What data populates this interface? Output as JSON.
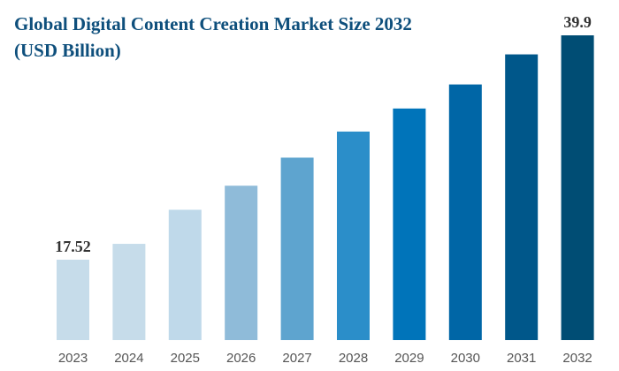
{
  "chart_data": {
    "type": "bar",
    "title": "Global Digital Content Creation Market Size 2032 (USD Billion)",
    "xlabel": "",
    "ylabel": "",
    "categories": [
      "2023",
      "2024",
      "2025",
      "2026",
      "2027",
      "2028",
      "2029",
      "2030",
      "2031",
      "2032"
    ],
    "values": [
      17.52,
      19.1,
      22.5,
      24.9,
      27.7,
      30.3,
      32.6,
      35.0,
      38.0,
      39.9
    ],
    "data_labels": {
      "2023": "17.52",
      "2032": "39.9"
    },
    "ylim": [
      9.5,
      40
    ],
    "grid": false,
    "colors": [
      "#c6dcea",
      "#c6dcea",
      "#bfd9ea",
      "#8fbbd9",
      "#5ea4cf",
      "#2b8ec9",
      "#0074ba",
      "#0066a6",
      "#00578a",
      "#004d74"
    ]
  }
}
